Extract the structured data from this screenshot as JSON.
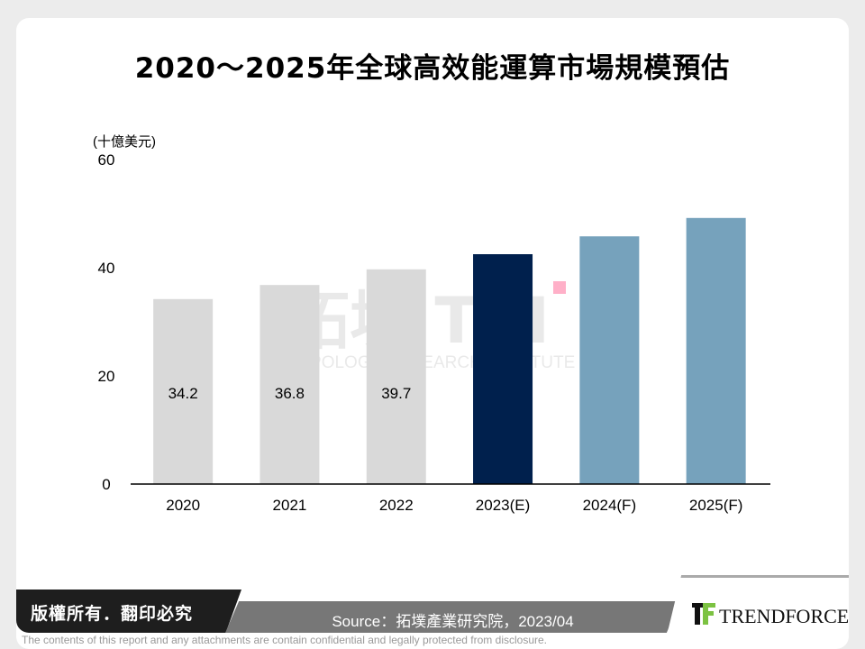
{
  "chart_data": {
    "type": "bar",
    "title": "2020～2025年全球高效能運算市場規模預估",
    "ylabel": "(十億美元)",
    "xlabel": "",
    "categories": [
      "2020",
      "2021",
      "2022",
      "2023(E)",
      "2024(F)",
      "2025(F)"
    ],
    "values": [
      34.2,
      36.8,
      39.7,
      42.5,
      45.8,
      49.2
    ],
    "data_labels": [
      "34.2",
      "36.8",
      "39.7",
      "",
      "",
      ""
    ],
    "bar_colors": [
      "#d9d9d9",
      "#d9d9d9",
      "#d9d9d9",
      "#00204d",
      "#76a2bc",
      "#76a2bc"
    ],
    "ylim": [
      0,
      60
    ],
    "yticks": [
      "0",
      "20",
      "40",
      "60"
    ],
    "grid": false,
    "legend": "none"
  },
  "watermark": {
    "text": "拓墣 TRI",
    "subtext": "TOPOLOGY RESEARCH INSTITUTE"
  },
  "footer": {
    "copyright": "版權所有．翻印必究",
    "source": "Source：拓墣產業研究院，2023/04",
    "brand": "TRENDFORCE",
    "disclaimer": "The contents of this report and any attachments are contain confidential and legally protected from disclosure."
  }
}
